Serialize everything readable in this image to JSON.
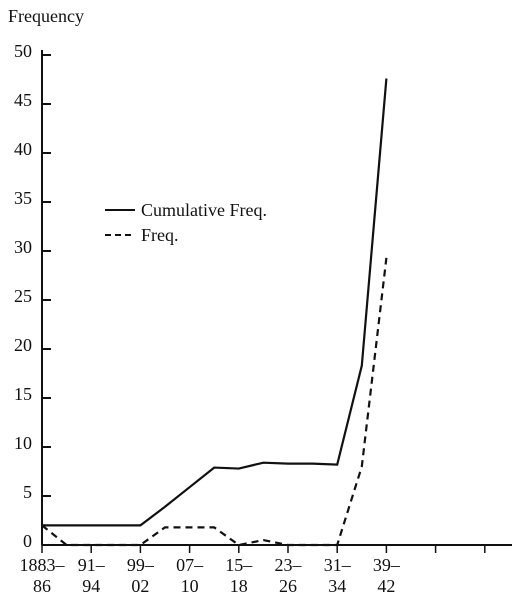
{
  "chart_data": {
    "type": "line",
    "y_label": "Frequency",
    "categories": [
      "1883–\n86",
      null,
      "91–\n94",
      null,
      "99–\n02",
      null,
      "07–\n10",
      null,
      "15–\n18",
      null,
      "23–\n26",
      null,
      "31–\n34",
      null,
      "39–\n42",
      null,
      null,
      null,
      null
    ],
    "series": [
      {
        "name": "Cumulative Freq.",
        "color": "#111111",
        "dash": "solid",
        "values": [
          2,
          2,
          2,
          2,
          2,
          3.9,
          5.9,
          7.9,
          7.8,
          8.4,
          8.3,
          8.3,
          8.2,
          18.3,
          47.6,
          null,
          null,
          null,
          null
        ]
      },
      {
        "name": "Freq.",
        "color": "#111111",
        "dash": "dashed",
        "values": [
          2,
          0,
          0,
          0,
          0,
          1.8,
          1.8,
          1.8,
          0,
          0.5,
          0,
          0,
          0,
          8,
          29.3,
          null,
          null,
          null,
          null
        ]
      }
    ],
    "ylim": [
      0,
      50
    ],
    "yticks": [
      0,
      5,
      10,
      15,
      20,
      25,
      30,
      35,
      40,
      45,
      50
    ],
    "grid": false
  }
}
